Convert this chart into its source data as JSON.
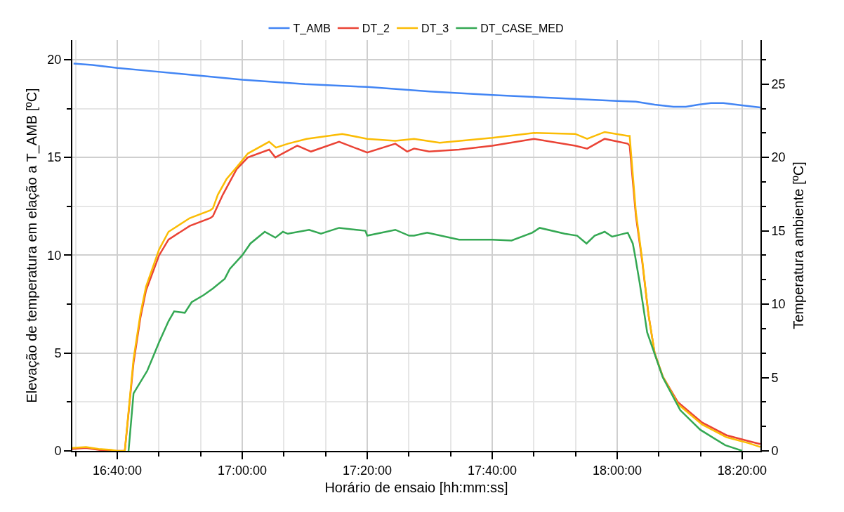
{
  "chart_data": {
    "type": "line",
    "xlabel": "Horário de ensaio [hh:mm:ss]",
    "ylabel": "Elevação de temperatura em elação a T_AMB [ºC]",
    "y2label": "Temperatura ambiente [ºC]",
    "xlim": [
      16.5467,
      18.3822
    ],
    "xticks": [
      {
        "value": 16.5556,
        "label": null
      },
      {
        "value": 16.6667,
        "label": "16:40:00"
      },
      {
        "value": 16.7778,
        "label": null
      },
      {
        "value": 16.8889,
        "label": null
      },
      {
        "value": 17,
        "label": "17:00:00"
      },
      {
        "value": 17.1111,
        "label": null
      },
      {
        "value": 17.2222,
        "label": null
      },
      {
        "value": 17.3333,
        "label": "17:20:00"
      },
      {
        "value": 17.4444,
        "label": null
      },
      {
        "value": 17.5556,
        "label": null
      },
      {
        "value": 17.6667,
        "label": "17:40:00"
      },
      {
        "value": 17.7778,
        "label": null
      },
      {
        "value": 17.8889,
        "label": null
      },
      {
        "value": 18,
        "label": "18:00:00"
      },
      {
        "value": 18.1111,
        "label": null
      },
      {
        "value": 18.2222,
        "label": null
      },
      {
        "value": 18.3333,
        "label": "18:20:00"
      }
    ],
    "ylim": [
      0,
      21
    ],
    "yticks": [
      0,
      {
        "value": 2.5,
        "label": null
      },
      5,
      {
        "value": 7.5,
        "label": null
      },
      10,
      {
        "value": 12.5,
        "label": null
      },
      15,
      {
        "value": 17.5,
        "label": null
      },
      20
    ],
    "y2lim": [
      0,
      28
    ],
    "y2ticks": [
      0,
      {
        "value": 1.667,
        "label": null
      },
      {
        "value": 3.333,
        "label": null
      },
      5,
      {
        "value": 6.667,
        "label": null
      },
      {
        "value": 8.333,
        "label": null
      },
      10,
      {
        "value": 11.667,
        "label": null
      },
      {
        "value": 13.333,
        "label": null
      },
      15,
      {
        "value": 16.667,
        "label": null
      },
      {
        "value": 18.333,
        "label": null
      },
      20,
      {
        "value": 21.667,
        "label": null
      },
      {
        "value": 23.333,
        "label": null
      },
      25,
      {
        "value": 26.667,
        "label": null
      }
    ],
    "grid": true,
    "legend": "top",
    "series": [
      {
        "name": "T_AMB",
        "color": "#4285f4",
        "axis": "y2",
        "x": [
          16.55,
          16.6,
          16.6667,
          16.75,
          16.8333,
          16.9167,
          17,
          17.1667,
          17.3333,
          17.5,
          17.6667,
          17.8333,
          18,
          18.05,
          18.1,
          18.15,
          18.1833,
          18.2167,
          18.25,
          18.2833,
          18.3333,
          18.3817
        ],
        "values": [
          26.4,
          26.3,
          26.1,
          25.9,
          25.7,
          25.5,
          25.3,
          25.0,
          24.8,
          24.5,
          24.25,
          24.05,
          23.85,
          23.8,
          23.6,
          23.45,
          23.45,
          23.6,
          23.7,
          23.7,
          23.55,
          23.4
        ]
      },
      {
        "name": "DT_2",
        "color": "#ea4335",
        "x": [
          16.5467,
          16.5833,
          16.6167,
          16.65,
          16.6667,
          16.6867,
          16.71,
          16.7283,
          16.7433,
          16.7783,
          16.8033,
          16.86,
          16.915,
          16.9217,
          16.9483,
          16.985,
          17.015,
          17.0717,
          17.0883,
          17.1467,
          17.1833,
          17.2583,
          17.3333,
          17.4083,
          17.44,
          17.4583,
          17.4983,
          17.5783,
          17.6667,
          17.7783,
          17.8883,
          17.92,
          17.9667,
          18.0283,
          18.0333,
          18.05,
          18.0667,
          18.0833,
          18.1,
          18.1217,
          18.1617,
          18.2267,
          18.2917,
          18.35,
          18.3817
        ],
        "values": [
          0.1,
          0.15,
          0.05,
          0,
          0,
          0,
          4.5,
          6.8,
          8.2,
          10.0,
          10.8,
          11.5,
          11.9,
          12.0,
          13.1,
          14.4,
          15.0,
          15.4,
          15.0,
          15.6,
          15.3,
          15.8,
          15.25,
          15.7,
          15.3,
          15.45,
          15.3,
          15.4,
          15.6,
          15.95,
          15.6,
          15.45,
          15.95,
          15.7,
          15.6,
          12.0,
          9.7,
          7.0,
          5.0,
          3.8,
          2.5,
          1.45,
          0.8,
          0.5,
          0.35
        ]
      },
      {
        "name": "DT_3",
        "color": "#fbbc04",
        "x": [
          16.5467,
          16.5833,
          16.6167,
          16.65,
          16.6667,
          16.6867,
          16.71,
          16.7283,
          16.7433,
          16.7783,
          16.8033,
          16.86,
          16.915,
          16.9217,
          16.935,
          16.9583,
          16.985,
          17.015,
          17.0717,
          17.09,
          17.1217,
          17.1717,
          17.2667,
          17.3333,
          17.4083,
          17.4583,
          17.5267,
          17.6667,
          17.7783,
          17.8883,
          17.92,
          17.9667,
          18.0283,
          18.0333,
          18.05,
          18.0667,
          18.0833,
          18.1,
          18.1217,
          18.1617,
          18.2267,
          18.2917,
          18.35,
          18.3817
        ],
        "values": [
          0.15,
          0.2,
          0.1,
          0.05,
          0,
          0,
          4.7,
          7.0,
          8.4,
          10.3,
          11.2,
          11.9,
          12.3,
          12.4,
          13.1,
          13.9,
          14.5,
          15.2,
          15.8,
          15.5,
          15.7,
          15.95,
          16.2,
          15.95,
          15.85,
          15.95,
          15.75,
          16.0,
          16.25,
          16.2,
          15.95,
          16.3,
          16.1,
          16.1,
          12.2,
          9.8,
          7.0,
          5.0,
          3.8,
          2.4,
          1.35,
          0.7,
          0.4,
          0.2
        ]
      },
      {
        "name": "DT_CASE_MED",
        "color": "#34a853",
        "x": [
          16.6967,
          16.71,
          16.7467,
          16.7783,
          16.8033,
          16.8183,
          16.8467,
          16.865,
          16.8967,
          16.9217,
          16.9533,
          16.9667,
          17.0,
          17.0217,
          17.06,
          17.0883,
          17.1083,
          17.1217,
          17.1783,
          17.21,
          17.2583,
          17.3283,
          17.3333,
          17.4083,
          17.445,
          17.4583,
          17.4933,
          17.5783,
          17.6667,
          17.7183,
          17.7733,
          17.7933,
          17.86,
          17.8933,
          17.9183,
          17.94,
          17.9667,
          17.9867,
          18.0283,
          18.0417,
          18.0467,
          18.06,
          18.08,
          18.1217,
          18.1683,
          18.2217,
          18.2883,
          18.3283,
          18.3333
        ],
        "values": [
          0,
          2.94,
          4.1,
          5.56,
          6.63,
          7.13,
          7.06,
          7.6,
          7.96,
          8.3,
          8.8,
          9.3,
          10.0,
          10.6,
          11.2,
          10.9,
          11.2,
          11.1,
          11.3,
          11.1,
          11.4,
          11.25,
          11.0,
          11.3,
          11.0,
          11.0,
          11.15,
          10.8,
          10.8,
          10.75,
          11.15,
          11.4,
          11.1,
          11.0,
          10.6,
          11.0,
          11.2,
          10.95,
          11.15,
          10.6,
          10.1,
          8.6,
          6.06,
          3.76,
          2.08,
          1.08,
          0.29,
          0.04,
          0
        ]
      }
    ]
  }
}
